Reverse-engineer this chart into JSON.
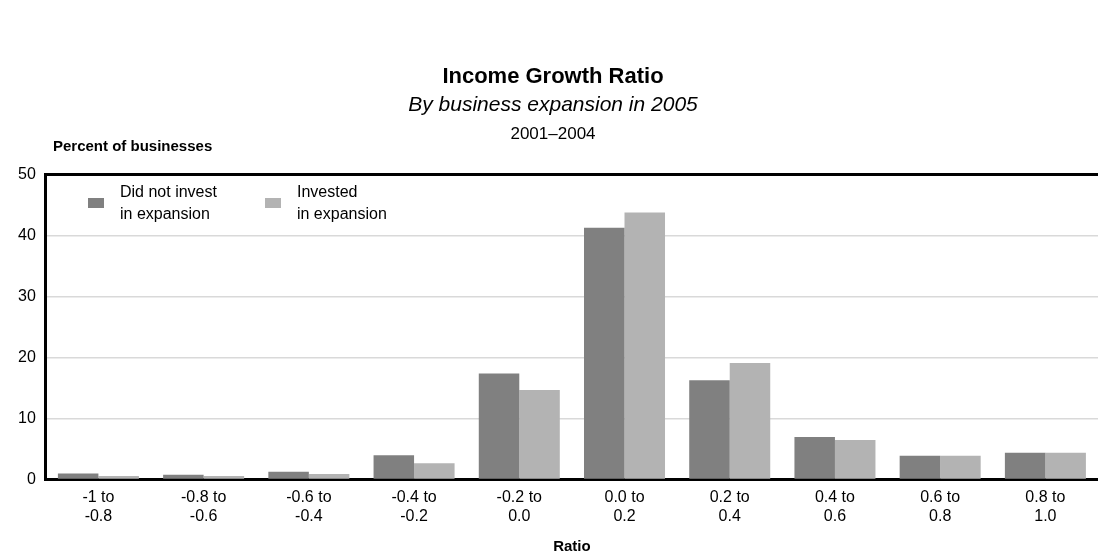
{
  "chart_data": {
    "type": "bar",
    "title": "Income Growth Ratio",
    "subtitle": "By business expansion in 2005",
    "annotations": [
      "2001–2004"
    ],
    "xlabel": "Ratio",
    "ylabel": "Percent of businesses",
    "categories": [
      "-1 to -0.8",
      "-0.8 to -0.6",
      "-0.6 to -0.4",
      "-0.4 to -0.2",
      "-0.2 to 0.0",
      "0.0 to 0.2",
      "0.2 to 0.4",
      "0.4 to 0.6",
      "0.6 to 0.8",
      "0.8 to 1.0"
    ],
    "series": [
      {
        "name": "Did not invest in expansion",
        "color": "#808080",
        "values": [
          1.0,
          0.8,
          1.3,
          4.0,
          17.4,
          41.3,
          16.3,
          7.0,
          3.9,
          4.4
        ]
      },
      {
        "name": "Invested in expansion",
        "color": "#b3b3b3",
        "values": [
          0.6,
          0.6,
          0.9,
          2.7,
          14.7,
          43.8,
          19.1,
          6.5,
          3.9,
          4.4
        ]
      }
    ],
    "ylim": [
      0,
      50
    ],
    "yticks": [
      0,
      10,
      20,
      30,
      40,
      50
    ],
    "grid": "y",
    "legend": "top left"
  }
}
